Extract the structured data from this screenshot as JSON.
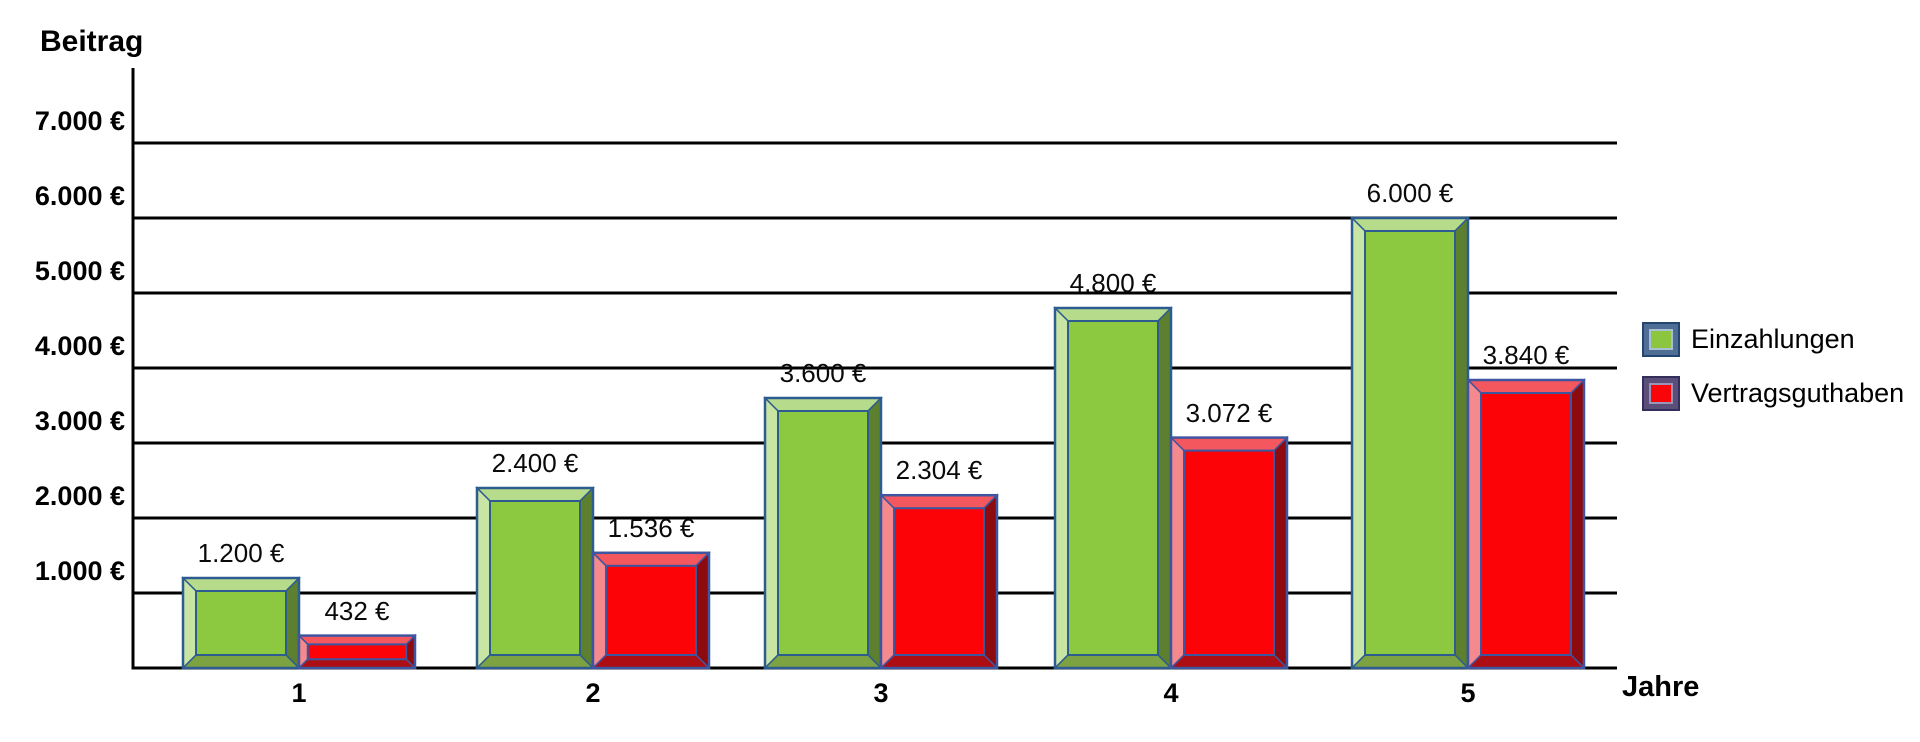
{
  "chart_data": {
    "type": "bar",
    "title": "",
    "ylabel": "Beitrag",
    "xlabel": "Jahre",
    "categories": [
      "1",
      "2",
      "3",
      "4",
      "5"
    ],
    "series": [
      {
        "name": "Einzahlungen",
        "color_key": "einzahlungen",
        "values": [
          1200,
          2400,
          3600,
          4800,
          6000
        ],
        "labels": [
          "1.200 €",
          "2.400 €",
          "3.600 €",
          "4.800 €",
          "6.000 €"
        ]
      },
      {
        "name": "Vertragsguthaben",
        "color_key": "vertragsguthaben",
        "values": [
          432,
          1536,
          2304,
          3072,
          3840
        ],
        "labels": [
          "432 €",
          "1.536 €",
          "2.304 €",
          "3.072 €",
          "3.840 €"
        ]
      }
    ],
    "y_ticks": [
      {
        "value": 1000,
        "label": "1.000 €"
      },
      {
        "value": 2000,
        "label": "2.000 €"
      },
      {
        "value": 3000,
        "label": "3.000 €"
      },
      {
        "value": 4000,
        "label": "4.000 €"
      },
      {
        "value": 5000,
        "label": "5.000 €"
      },
      {
        "value": 6000,
        "label": "6.000 €"
      },
      {
        "value": 7000,
        "label": "7.000 €"
      }
    ],
    "ylim": [
      0,
      8000
    ],
    "grid": true,
    "legend_position": "right",
    "background": "#ffffff",
    "line_color": "#000000",
    "colors": {
      "einzahlungen": {
        "fill": "#8cc840",
        "bevel_top": "#b6db8b",
        "bevel_left": "#c9e5a4",
        "bevel_right": "#5c8030",
        "bevel_bottom": "#7ca241",
        "border": "#2d5c90"
      },
      "vertragsguthaben": {
        "fill": "#fc0407",
        "bevel_top": "#f4575e",
        "bevel_left": "#f48a8d",
        "bevel_right": "#8d0a0e",
        "bevel_bottom": "#ac0e13",
        "border": "#3e55a0"
      }
    }
  }
}
